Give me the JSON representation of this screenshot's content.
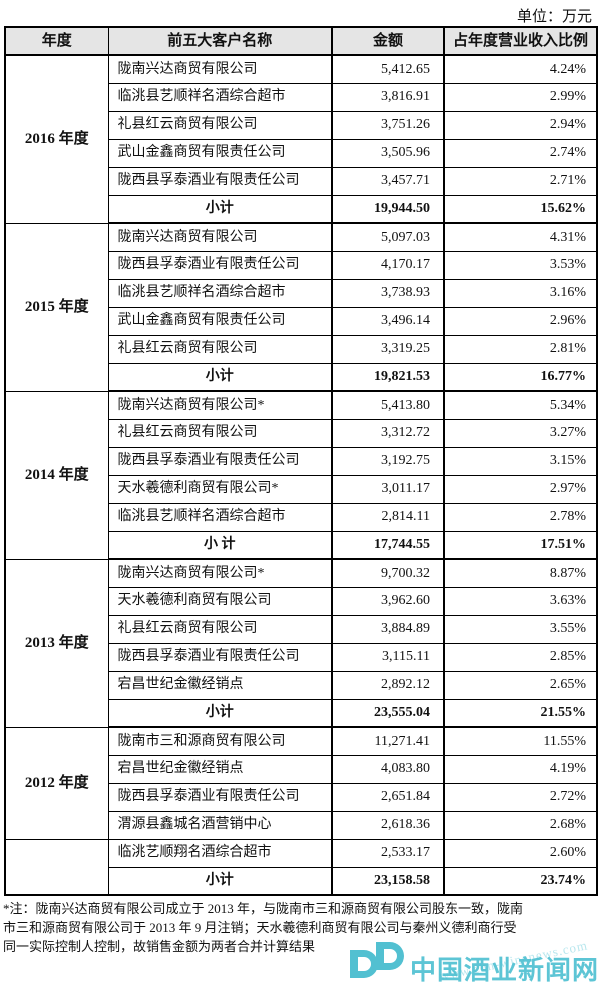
{
  "unit_label": "单位：万元",
  "table": {
    "headers": [
      "年度",
      "前五大客户名称",
      "金额",
      "占年度营业收入比例"
    ],
    "groups": [
      {
        "year": "2016 年度",
        "year_rowspan": 6,
        "rows": [
          {
            "name": "陇南兴达商贸有限公司",
            "amount": "5,412.65",
            "ratio": "4.24%"
          },
          {
            "name": "临洮县艺顺祥名酒综合超市",
            "amount": "3,816.91",
            "ratio": "2.99%"
          },
          {
            "name": "礼县红云商贸有限公司",
            "amount": "3,751.26",
            "ratio": "2.94%"
          },
          {
            "name": "武山金鑫商贸有限责任公司",
            "amount": "3,505.96",
            "ratio": "2.74%"
          },
          {
            "name": "陇西县孚泰酒业有限责任公司",
            "amount": "3,457.71",
            "ratio": "2.71%"
          }
        ],
        "subtotal": {
          "label": "小计",
          "amount": "19,944.50",
          "ratio": "15.62%"
        }
      },
      {
        "year": "2015 年度",
        "year_rowspan": 6,
        "rows": [
          {
            "name": "陇南兴达商贸有限公司",
            "amount": "5,097.03",
            "ratio": "4.31%"
          },
          {
            "name": "陇西县孚泰酒业有限责任公司",
            "amount": "4,170.17",
            "ratio": "3.53%"
          },
          {
            "name": "临洮县艺顺祥名酒综合超市",
            "amount": "3,738.93",
            "ratio": "3.16%"
          },
          {
            "name": "武山金鑫商贸有限责任公司",
            "amount": "3,496.14",
            "ratio": "2.96%"
          },
          {
            "name": "礼县红云商贸有限公司",
            "amount": "3,319.25",
            "ratio": "2.81%"
          }
        ],
        "subtotal": {
          "label": "小计",
          "amount": "19,821.53",
          "ratio": "16.77%"
        }
      },
      {
        "year": "2014 年度",
        "year_rowspan": 6,
        "rows": [
          {
            "name": "陇南兴达商贸有限公司*",
            "amount": "5,413.80",
            "ratio": "5.34%"
          },
          {
            "name": "礼县红云商贸有限公司",
            "amount": "3,312.72",
            "ratio": "3.27%"
          },
          {
            "name": "陇西县孚泰酒业有限责任公司",
            "amount": "3,192.75",
            "ratio": "3.15%"
          },
          {
            "name": "天水羲德利商贸有限公司*",
            "amount": "3,011.17",
            "ratio": "2.97%"
          },
          {
            "name": "临洮县艺顺祥名酒综合超市",
            "amount": "2,814.11",
            "ratio": "2.78%"
          }
        ],
        "subtotal": {
          "label": "小 计",
          "amount": "17,744.55",
          "ratio": "17.51%"
        }
      },
      {
        "year": "2013 年度",
        "year_rowspan": 6,
        "rows": [
          {
            "name": "陇南兴达商贸有限公司*",
            "amount": "9,700.32",
            "ratio": "8.87%"
          },
          {
            "name": "天水羲德利商贸有限公司",
            "amount": "3,962.60",
            "ratio": "3.63%"
          },
          {
            "name": "礼县红云商贸有限公司",
            "amount": "3,884.89",
            "ratio": "3.55%"
          },
          {
            "name": "陇西县孚泰酒业有限责任公司",
            "amount": "3,115.11",
            "ratio": "2.85%"
          },
          {
            "name": "宕昌世纪金徽经销点",
            "amount": "2,892.12",
            "ratio": "2.65%"
          }
        ],
        "subtotal": {
          "label": "小计",
          "amount": "23,555.04",
          "ratio": "21.55%"
        }
      },
      {
        "year": "2012 年度",
        "year_rowspan": 4,
        "empty_cell_at_row": 4,
        "rows": [
          {
            "name": "陇南市三和源商贸有限公司",
            "amount": "11,271.41",
            "ratio": "11.55%"
          },
          {
            "name": "宕昌世纪金徽经销点",
            "amount": "4,083.80",
            "ratio": "4.19%"
          },
          {
            "name": "陇西县孚泰酒业有限责任公司",
            "amount": "2,651.84",
            "ratio": "2.72%"
          },
          {
            "name": "渭源县鑫城名酒营销中心",
            "amount": "2,618.36",
            "ratio": "2.68%"
          },
          {
            "name": "临洮艺顺翔名酒综合超市",
            "amount": "2,533.17",
            "ratio": "2.60%"
          }
        ],
        "subtotal": {
          "label": "小计",
          "amount": "23,158.58",
          "ratio": "23.74%"
        }
      }
    ]
  },
  "footnote": {
    "lines": [
      "*注：陇南兴达商贸有限公司成立于 2013 年，与陇南市三和源商贸有限公司股东一致，陇南",
      "市三和源商贸有限公司于 2013 年 9 月注销；天水羲德利商贸有限公司与秦州义德利商行受",
      "同一实际控制人控制，故销售金额为两者合并计算结果"
    ]
  },
  "watermark": {
    "site_name": "中国酒业新闻网",
    "url": "www.chn-winenews.com",
    "color": "#3cb8cb"
  }
}
